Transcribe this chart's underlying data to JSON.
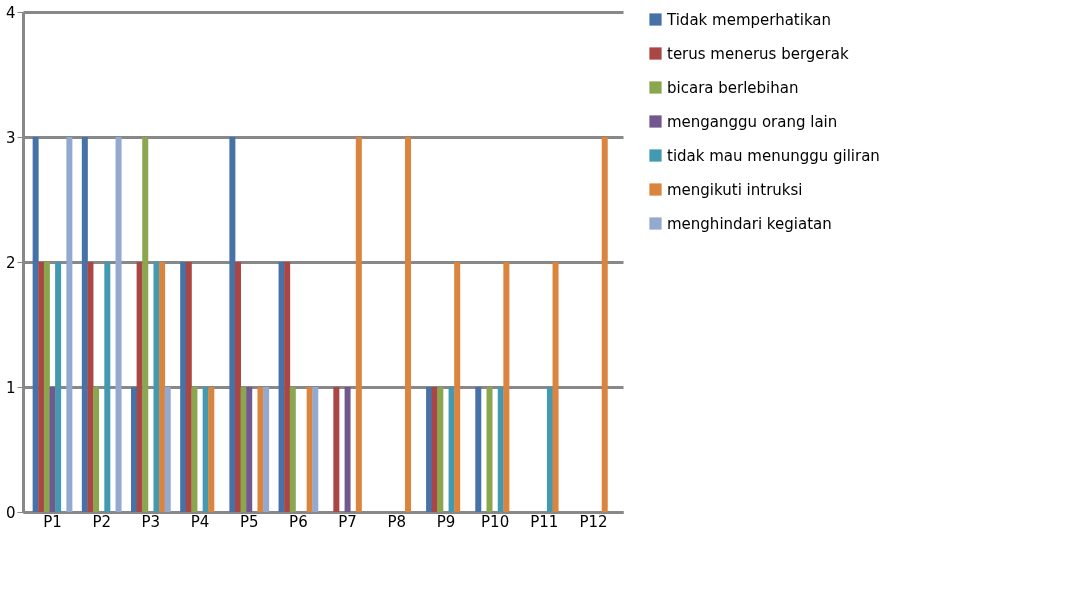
{
  "chart_data": {
    "type": "bar",
    "categories": [
      "P1",
      "P2",
      "P3",
      "P4",
      "P5",
      "P6",
      "P7",
      "P8",
      "P9",
      "P10",
      "P11",
      "P12"
    ],
    "series": [
      {
        "name": "Tidak memperhatikan",
        "color": "#4672a8",
        "values": [
          3,
          3,
          1,
          2,
          3,
          2,
          0,
          0,
          1,
          1,
          0,
          0
        ]
      },
      {
        "name": "terus menerus bergerak",
        "color": "#aa4644",
        "values": [
          2,
          2,
          2,
          2,
          2,
          2,
          1,
          0,
          1,
          0,
          0,
          0
        ]
      },
      {
        "name": "bicara berlebihan",
        "color": "#8aa64f",
        "values": [
          2,
          1,
          3,
          1,
          1,
          1,
          0,
          0,
          1,
          1,
          0,
          0
        ]
      },
      {
        "name": "menganggu orang lain",
        "color": "#71598f",
        "values": [
          1,
          0,
          0,
          0,
          1,
          0,
          1,
          0,
          0,
          0,
          0,
          0
        ]
      },
      {
        "name": "tidak mau menunggu giliran",
        "color": "#4299b0",
        "values": [
          2,
          2,
          2,
          1,
          0,
          0,
          0,
          0,
          1,
          1,
          1,
          0
        ]
      },
      {
        "name": "mengikuti intruksi",
        "color": "#db843d",
        "values": [
          0,
          0,
          2,
          1,
          1,
          1,
          3,
          3,
          2,
          2,
          2,
          3
        ]
      },
      {
        "name": "menghindari kegiatan",
        "color": "#93a9cf",
        "values": [
          3,
          3,
          1,
          0,
          1,
          1,
          0,
          0,
          0,
          0,
          0,
          0
        ]
      }
    ],
    "ylim": [
      0,
      4
    ],
    "yticks": [
      0,
      1,
      2,
      3,
      4
    ],
    "grid": "y",
    "legend": "right"
  }
}
